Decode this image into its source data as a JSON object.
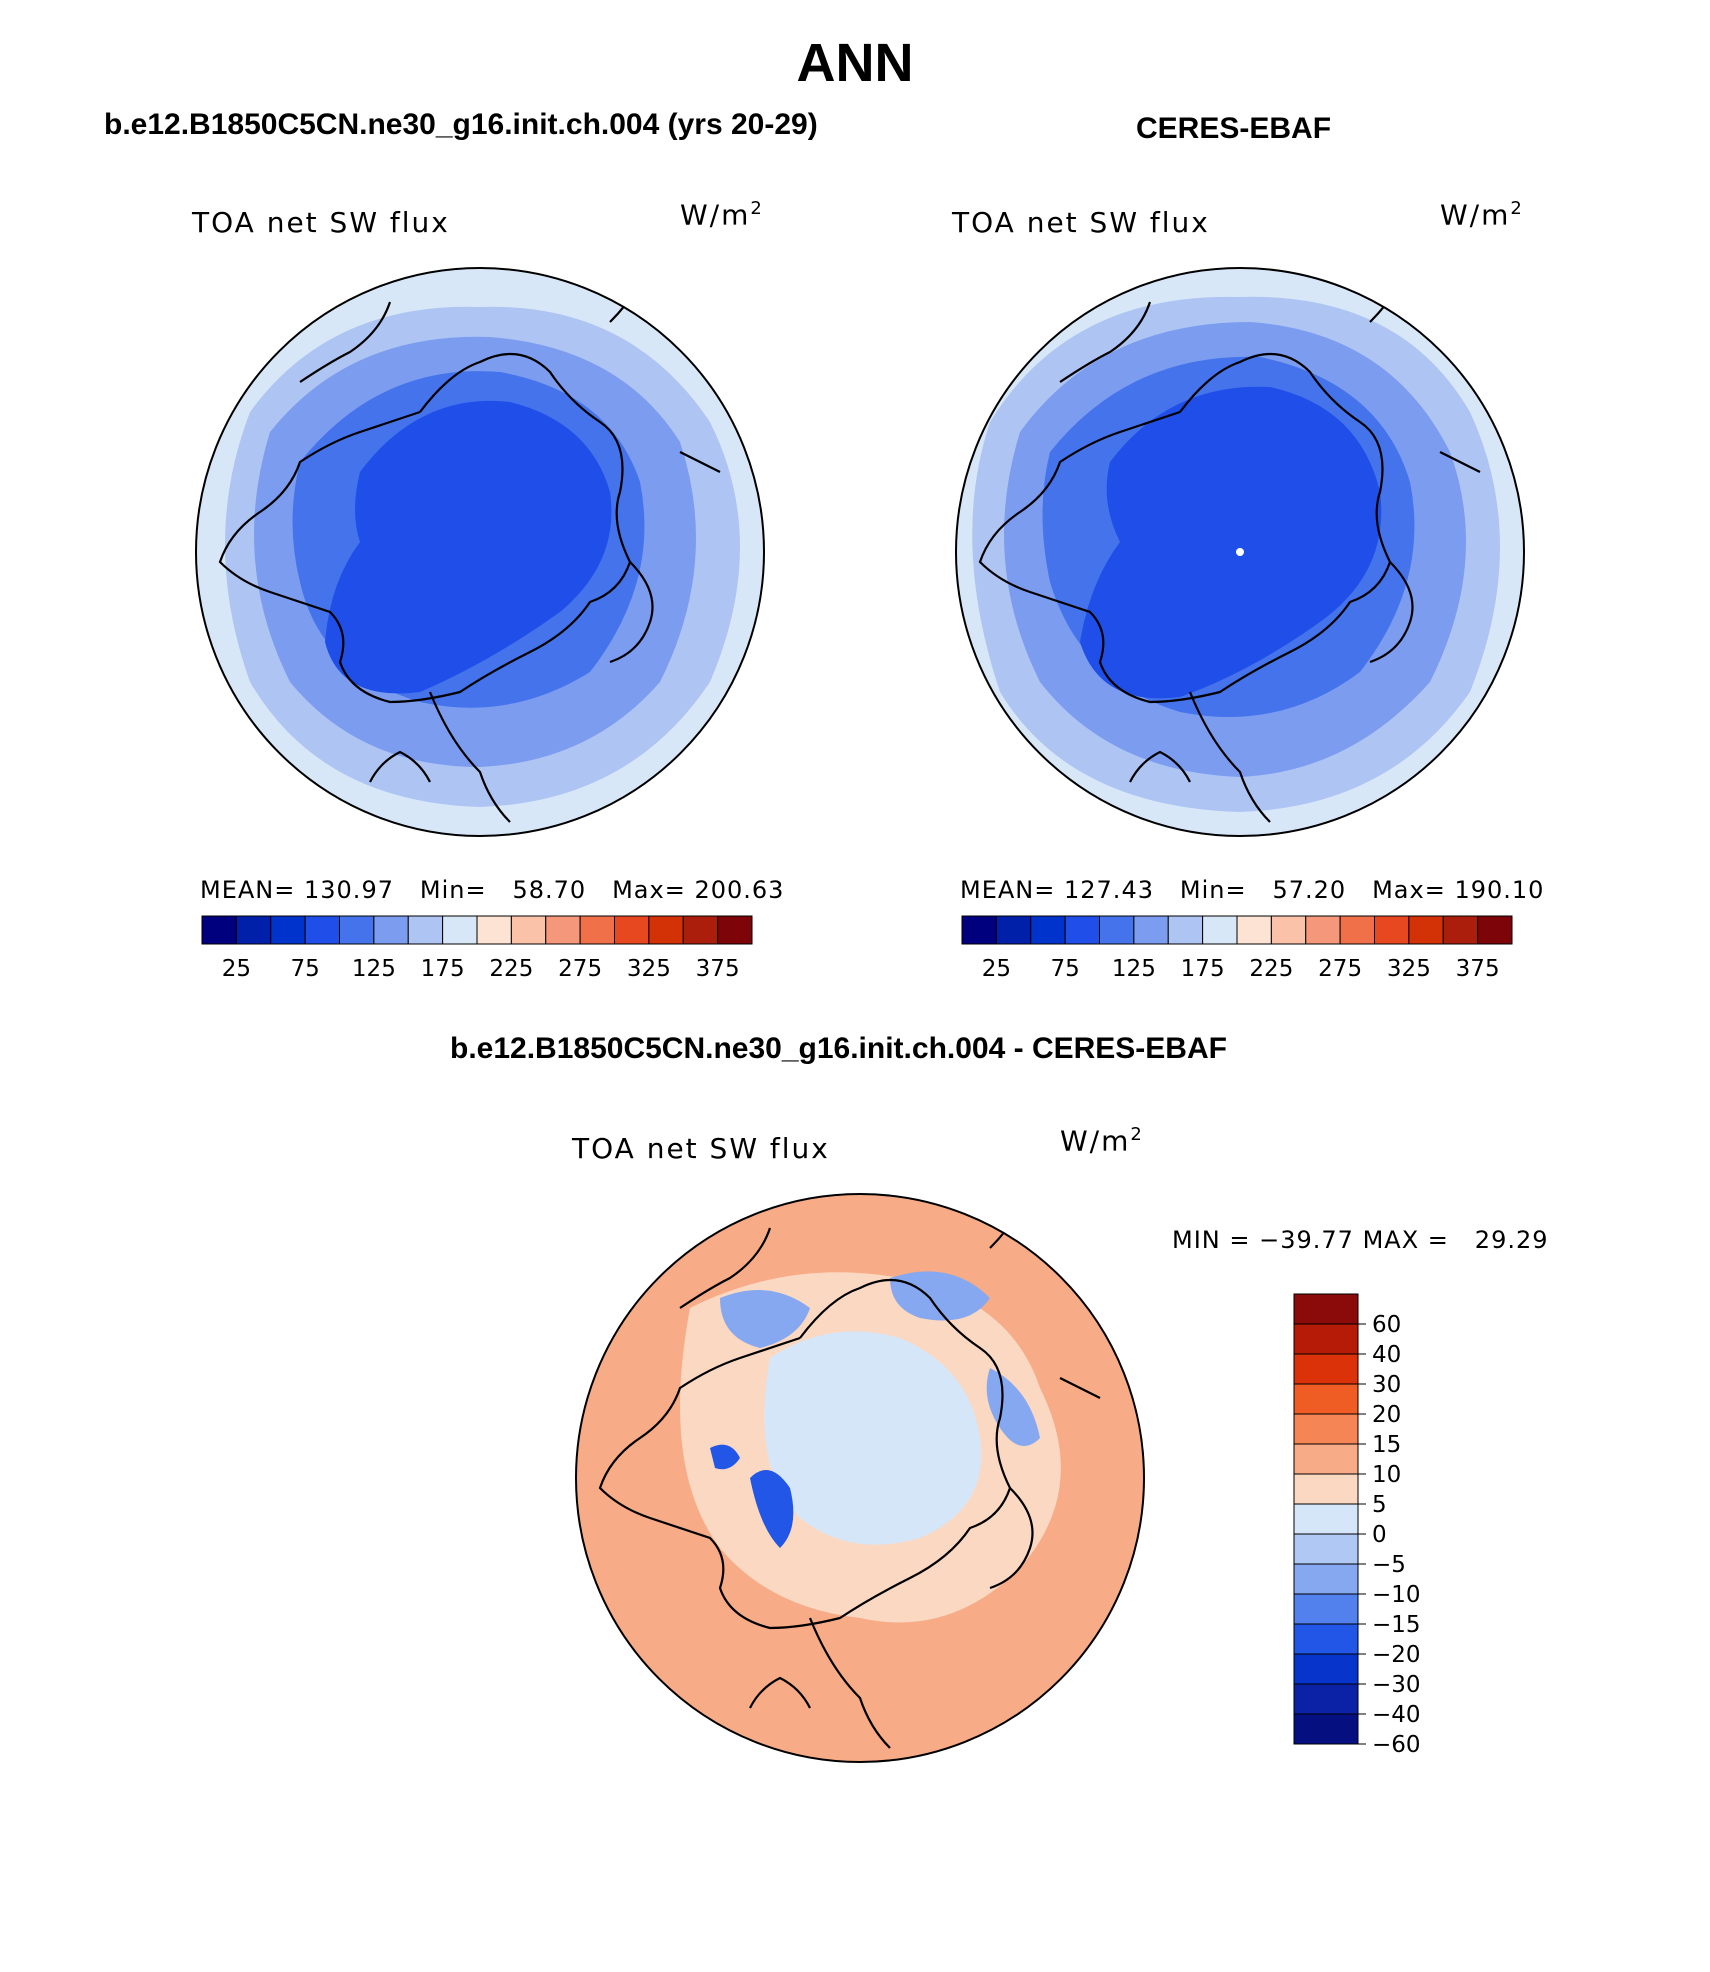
{
  "page": {
    "title": "ANN"
  },
  "panels": {
    "left": {
      "case_title": "b.e12.B1850C5CN.ne30_g16.init.ch.004 (yrs 20-29)",
      "variable": "TOA net SW flux",
      "units_base": "W/m",
      "units_exp": "2",
      "stats": {
        "mean_label": "MEAN=",
        "mean": "130.97",
        "min_label": "Min=",
        "min": "58.70",
        "max_label": "Max=",
        "max": "200.63"
      }
    },
    "right": {
      "case_title": "CERES-EBAF",
      "variable": "TOA net SW flux",
      "units_base": "W/m",
      "units_exp": "2",
      "stats": {
        "mean_label": "MEAN=",
        "mean": "127.43",
        "min_label": "Min=",
        "min": "57.20",
        "max_label": "Max=",
        "max": "190.10"
      }
    },
    "diff": {
      "case_title": "b.e12.B1850C5CN.ne30_g16.init.ch.004 - CERES-EBAF",
      "variable": "TOA net SW flux",
      "units_base": "W/m",
      "units_exp": "2",
      "minmax": {
        "min_label": "MIN =",
        "min": "−39.77",
        "max_label": "MAX =",
        "max": "29.29"
      }
    }
  },
  "colorbars": {
    "abs": {
      "colors": [
        "#00007f",
        "#0020aa",
        "#0033cc",
        "#1f4fe8",
        "#4473ec",
        "#7c9cf0",
        "#aec5f4",
        "#d8e7f8",
        "#fde3d4",
        "#f9c2a9",
        "#f5977a",
        "#f0704a",
        "#e8481f",
        "#d23206",
        "#ac1e0c",
        "#7d0509"
      ],
      "tick_labels": [
        "25",
        "75",
        "125",
        "175",
        "225",
        "275",
        "325",
        "375"
      ]
    },
    "diff": {
      "colors": [
        "#8b0a0a",
        "#b51b06",
        "#db3209",
        "#ef5d25",
        "#f58555",
        "#f7ab86",
        "#fbd8c2",
        "#d6e6f9",
        "#b0c8f4",
        "#86a8f0",
        "#5281ee",
        "#2256e6",
        "#0735cb",
        "#0b22a7",
        "#050f80"
      ],
      "tick_labels": [
        "60",
        "40",
        "30",
        "20",
        "15",
        "10",
        "5",
        "0",
        "−5",
        "−10",
        "−15",
        "−20",
        "−30",
        "−40",
        "−60"
      ]
    }
  },
  "maps": {
    "model": {
      "fill_levels": [
        "#d8e7f8",
        "#aec5f4",
        "#7c9cf0",
        "#4473ec",
        "#1f4fe8"
      ]
    },
    "obs": {
      "fill_levels": [
        "#d8e7f8",
        "#aec5f4",
        "#7c9cf0",
        "#4473ec",
        "#1f4fe8"
      ],
      "pole_marker_color": "#ffffff"
    },
    "difference": {
      "fill_levels": [
        "#f7ab86",
        "#fbd8c2",
        "#d6e6f9",
        "#86a8f0",
        "#2256e6"
      ]
    }
  }
}
